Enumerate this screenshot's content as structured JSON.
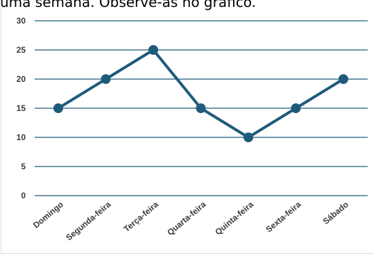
{
  "caption": "uma semana. Observe-as no gráfico.",
  "chart_data": {
    "type": "line",
    "title": "",
    "xlabel": "",
    "ylabel": "",
    "categories": [
      "Domingo",
      "Segunda-feira",
      "Terça-feira",
      "Quarta-feira",
      "Quinta-feira",
      "Sexta-feira",
      "Sábado"
    ],
    "series": [
      {
        "values": [
          15,
          20,
          25,
          15,
          10,
          15,
          20
        ]
      }
    ],
    "ylim": [
      0,
      30
    ],
    "yticks": [
      0,
      5,
      10,
      15,
      20,
      25,
      30
    ],
    "grid": true,
    "legend": "none",
    "colors": {
      "line": "#1f5a7a",
      "grid": "#1f5a7a",
      "tick_text": "#3a3a3a"
    }
  }
}
